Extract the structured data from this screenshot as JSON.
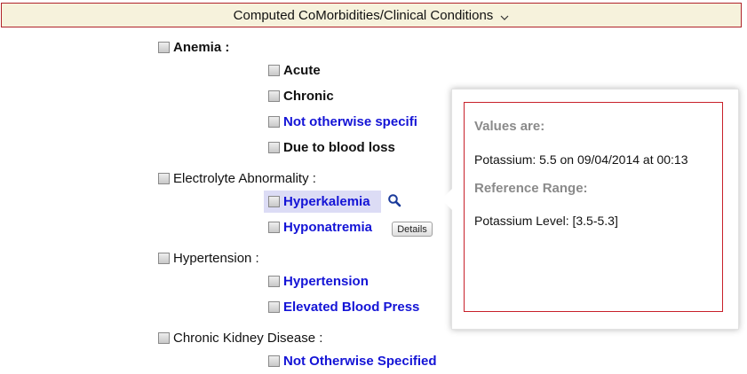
{
  "header": {
    "title": "Computed CoMorbidities/Clinical Conditions",
    "caret_icon": "chevron-down-icon"
  },
  "categories": {
    "anemia": "Anemia :",
    "electrolyte": "Electrolyte Abnormality :",
    "hypertension": "Hypertension :",
    "ckd": "Chronic Kidney Disease :"
  },
  "items": {
    "acute": "Acute",
    "chronic": "Chronic",
    "anemia_nos": "Not otherwise specifi",
    "blood_loss": "Due to blood loss",
    "hyperkalemia": "Hyperkalemia",
    "hyponatremia": "Hyponatremia",
    "hypertension": "Hypertension",
    "elevated_bp": "Elevated Blood Press",
    "ckd_nos": "Not Otherwise Specified"
  },
  "details_button": "Details",
  "magnifier_icon": "search-icon",
  "popup": {
    "values_title": "Values are:",
    "values_text": "Potassium: 5.5 on 09/04/2014 at 00:13",
    "range_title": "Reference Range:",
    "range_text": "Potassium Level: [3.5-5.3]"
  },
  "colors": {
    "link": "#1414d6",
    "border_accent": "#b0232a",
    "header_bg": "#f6f2dc",
    "highlight": "#dcdcf5"
  }
}
